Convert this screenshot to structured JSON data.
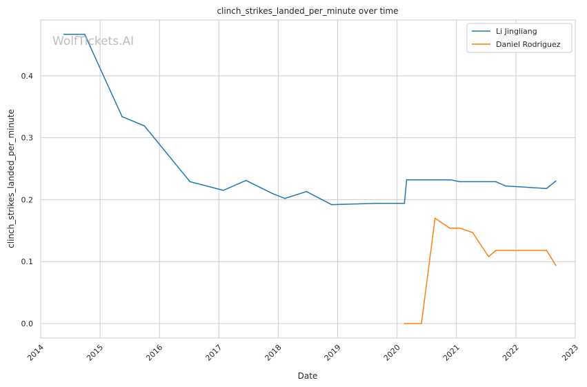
{
  "chart_data": {
    "type": "line",
    "title": "clinch_strikes_landed_per_minute over time",
    "xlabel": "Date",
    "ylabel": "clinch_strikes_landed_per_minute",
    "watermark": "WolfTickets.AI",
    "x_ticks": [
      "2014",
      "2015",
      "2016",
      "2017",
      "2018",
      "2019",
      "2020",
      "2021",
      "2022",
      "2023"
    ],
    "y_ticks": [
      "0.0",
      "0.1",
      "0.2",
      "0.3",
      "0.4"
    ],
    "xlim": [
      2014.0,
      2023.0
    ],
    "ylim": [
      -0.0234,
      0.49
    ],
    "grid": true,
    "legend_position": "top-right",
    "series": [
      {
        "name": "Li Jingliang",
        "color": "#1f77b4",
        "x": [
          "2014-05-24",
          "2014-09-28",
          "2015-05-16",
          "2015-09-30",
          "2016-07-07",
          "2017-01-28",
          "2017-06-17",
          "2017-11-25",
          "2018-02-10",
          "2018-06-23",
          "2018-11-24",
          "2019-08-31",
          "2020-02-15",
          "2020-02-29",
          "2020-11-28",
          "2021-01-21",
          "2021-08-31",
          "2021-10-30",
          "2022-07-09",
          "2022-09-03"
        ],
        "y": [
          0.467,
          0.467,
          0.334,
          0.319,
          0.229,
          0.215,
          0.231,
          0.21,
          0.202,
          0.213,
          0.192,
          0.194,
          0.194,
          0.232,
          0.232,
          0.229,
          0.229,
          0.222,
          0.218,
          0.23
        ]
      },
      {
        "name": "Daniel Rodriguez",
        "color": "#ff7f0e",
        "x": [
          "2020-02-15",
          "2020-05-30",
          "2020-08-22",
          "2020-11-21",
          "2021-01-21",
          "2021-04-10",
          "2021-07-17",
          "2021-08-31",
          "2022-07-09",
          "2022-09-03"
        ],
        "y": [
          0.0,
          0.0,
          0.17,
          0.154,
          0.154,
          0.147,
          0.108,
          0.118,
          0.118,
          0.094
        ]
      }
    ]
  }
}
